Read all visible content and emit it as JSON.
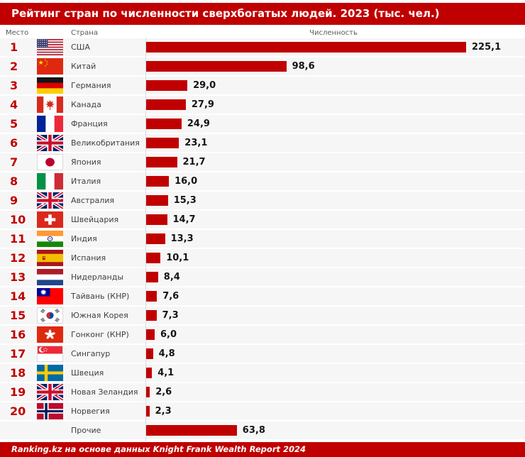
{
  "title": "Рейтинг стран по численности сверхбогатых людей. 2023 (тыс. чел.)",
  "columns": {
    "rank": "Место",
    "country": "Страна",
    "value": "Численность"
  },
  "footer": "Ranking.kz на основе данных Knight Frank Wealth Report 2024",
  "colors": {
    "accent": "#C00000",
    "row_band": "#F6F6F6",
    "header_text": "#595959",
    "country_text": "#3F3F3F",
    "value_text": "#141414"
  },
  "chart_data": {
    "type": "bar",
    "orientation": "horizontal",
    "title": "Рейтинг стран по численности сверхбогатых людей. 2023 (тыс. чел.)",
    "unit": "тыс. чел.",
    "xlim": [
      0,
      230
    ],
    "grid": false,
    "legend": false,
    "rows": [
      {
        "rank": "1",
        "country": "США",
        "flag": "us",
        "value": 225.1,
        "label": "225,1"
      },
      {
        "rank": "2",
        "country": "Китай",
        "flag": "cn",
        "value": 98.6,
        "label": "98,6"
      },
      {
        "rank": "3",
        "country": "Германия",
        "flag": "de",
        "value": 29.0,
        "label": "29,0"
      },
      {
        "rank": "4",
        "country": "Канада",
        "flag": "ca",
        "value": 27.9,
        "label": "27,9"
      },
      {
        "rank": "5",
        "country": "Франция",
        "flag": "fr",
        "value": 24.9,
        "label": "24,9"
      },
      {
        "rank": "6",
        "country": "Великобритания",
        "flag": "gb",
        "value": 23.1,
        "label": "23,1"
      },
      {
        "rank": "7",
        "country": "Япония",
        "flag": "jp",
        "value": 21.7,
        "label": "21,7"
      },
      {
        "rank": "8",
        "country": "Италия",
        "flag": "it",
        "value": 16.0,
        "label": "16,0"
      },
      {
        "rank": "9",
        "country": "Австралия",
        "flag": "au",
        "value": 15.3,
        "label": "15,3"
      },
      {
        "rank": "10",
        "country": "Швейцария",
        "flag": "ch",
        "value": 14.7,
        "label": "14,7"
      },
      {
        "rank": "11",
        "country": "Индия",
        "flag": "in",
        "value": 13.3,
        "label": "13,3"
      },
      {
        "rank": "12",
        "country": "Испания",
        "flag": "es",
        "value": 10.1,
        "label": "10,1"
      },
      {
        "rank": "13",
        "country": "Нидерланды",
        "flag": "nl",
        "value": 8.4,
        "label": "8,4"
      },
      {
        "rank": "14",
        "country": "Тайвань (КНР)",
        "flag": "tw",
        "value": 7.6,
        "label": "7,6"
      },
      {
        "rank": "15",
        "country": "Южная Корея",
        "flag": "kr",
        "value": 7.3,
        "label": "7,3"
      },
      {
        "rank": "16",
        "country": "Гонконг (КНР)",
        "flag": "hk",
        "value": 6.0,
        "label": "6,0"
      },
      {
        "rank": "17",
        "country": "Сингапур",
        "flag": "sg",
        "value": 4.8,
        "label": "4,8"
      },
      {
        "rank": "18",
        "country": "Швеция",
        "flag": "se",
        "value": 4.1,
        "label": "4,1"
      },
      {
        "rank": "19",
        "country": "Новая Зеландия",
        "flag": "nz",
        "value": 2.6,
        "label": "2,6"
      },
      {
        "rank": "20",
        "country": "Норвегия",
        "flag": "no",
        "value": 2.3,
        "label": "2,3"
      },
      {
        "rank": "",
        "country": "Прочие",
        "flag": "",
        "value": 63.8,
        "label": "63,8"
      }
    ]
  }
}
